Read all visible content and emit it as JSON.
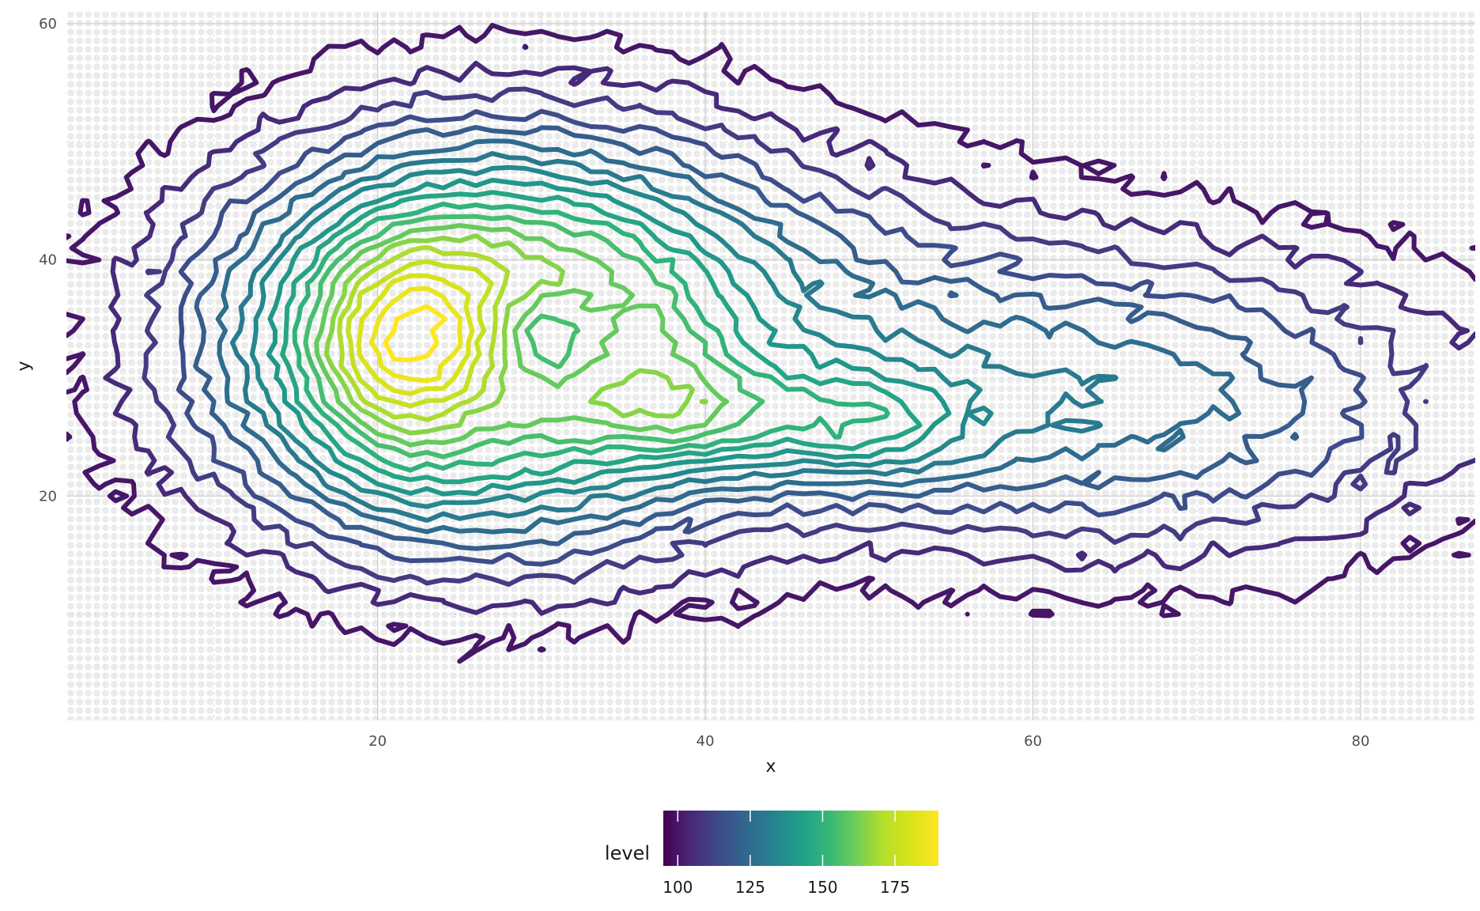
{
  "chart_data": {
    "type": "contour",
    "title": "",
    "xlabel": "x",
    "ylabel": "y",
    "xlim": [
      1,
      87
    ],
    "ylim": [
      1,
      61
    ],
    "x_ticks": [
      "20",
      "40",
      "60",
      "80"
    ],
    "x_tick_values": [
      20,
      40,
      60,
      80
    ],
    "y_ticks": [
      "20",
      "40",
      "60"
    ],
    "y_tick_values": [
      20,
      40,
      60
    ],
    "grid": true,
    "background": "points",
    "legend": {
      "title": "level",
      "placement": "bottom",
      "colormap": "viridis",
      "range": [
        95,
        190
      ],
      "tick_values": [
        100,
        125,
        150,
        175
      ],
      "tick_labels": [
        "100",
        "125",
        "150",
        "175"
      ]
    },
    "contour_levels": [
      100,
      105,
      110,
      115,
      120,
      125,
      130,
      135,
      140,
      145,
      150,
      155,
      160,
      165,
      170,
      175,
      180,
      185,
      190
    ],
    "peaks": [
      {
        "x": 21,
        "y": 33,
        "level": 190
      },
      {
        "x": 30,
        "y": 34,
        "level": 160
      },
      {
        "x": 39,
        "y": 27,
        "level": 175
      },
      {
        "x": 49,
        "y": 26,
        "level": 170
      },
      {
        "x": 68,
        "y": 27,
        "level": 150
      }
    ]
  }
}
